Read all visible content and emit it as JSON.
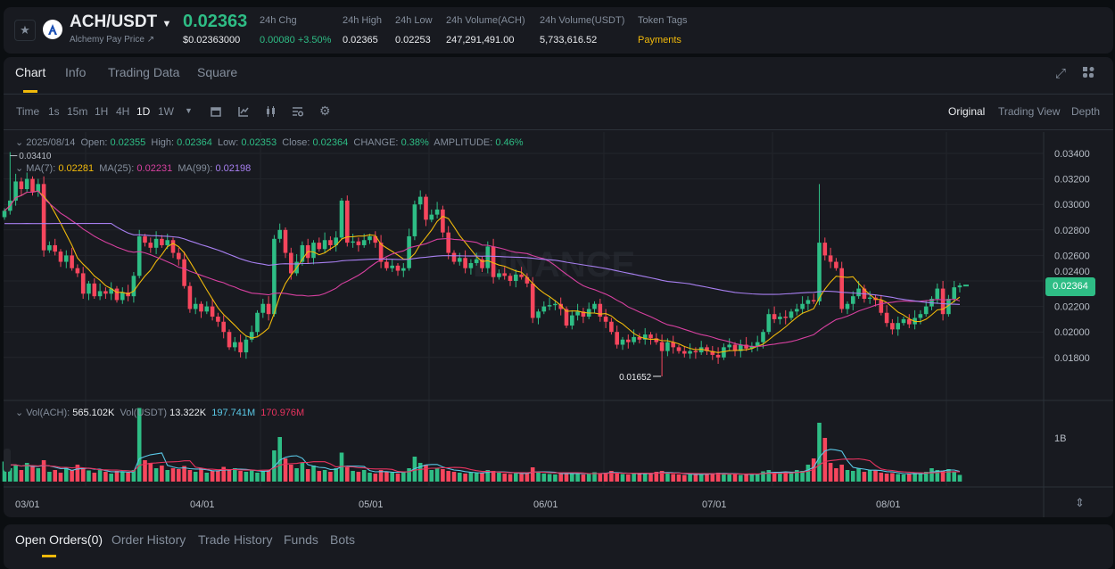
{
  "header": {
    "symbol": "ACH/USDT",
    "price": "0.02363",
    "name_link": "Alchemy Pay Price ↗",
    "usd_price": "$0.02363000",
    "stats": [
      {
        "label": "24h Chg",
        "value": "0.00080 +3.50%",
        "color": "#2ebd85"
      },
      {
        "label": "24h High",
        "value": "0.02365"
      },
      {
        "label": "24h Low",
        "value": "0.02253"
      },
      {
        "label": "24h Volume(ACH)",
        "value": "247,291,491.00"
      },
      {
        "label": "24h Volume(USDT)",
        "value": "5,733,616.52"
      },
      {
        "label": "Token Tags",
        "value": "Payments",
        "color": "#f0b90b"
      }
    ]
  },
  "tabs": [
    "Chart",
    "Info",
    "Trading Data",
    "Square"
  ],
  "toolbar": {
    "intervals": [
      "Time",
      "1s",
      "15m",
      "1H",
      "4H",
      "1D",
      "1W"
    ],
    "active_interval": "1D",
    "icons": [
      "calendar-icon",
      "indicator-icon",
      "candle-type-icon",
      "template-icon",
      "settings-icon"
    ],
    "views": [
      "Original",
      "Trading View",
      "Depth"
    ],
    "active_view": "Original"
  },
  "legend": {
    "date": "2025/08/14",
    "open_label": "Open:",
    "open": "0.02355",
    "high_label": "High:",
    "high": "0.02364",
    "low_label": "Low:",
    "low": "0.02353",
    "close_label": "Close:",
    "close": "0.02364",
    "change_label": "CHANGE:",
    "change": "0.38%",
    "amp_label": "AMPLITUDE:",
    "amp": "0.46%",
    "ma7_label": "MA(7):",
    "ma7": "0.02281",
    "ma25_label": "MA(25):",
    "ma25": "0.02231",
    "ma99_label": "MA(99):",
    "ma99": "0.02198",
    "vol_ach_label": "Vol(ACH):",
    "vol_ach": "565.102K",
    "vol_usdt_label": "Vol(USDT)",
    "vol_usdt": "13.322K",
    "vol_ma5": "197.741M",
    "vol_ma10": "170.976M"
  },
  "watermark": "BINANCE",
  "chart_data": {
    "type": "candlestick",
    "x_tick_labels": [
      "03/01",
      "04/01",
      "05/01",
      "06/01",
      "07/01",
      "08/01"
    ],
    "y_tick_labels": [
      "0.03400",
      "0.03200",
      "0.03000",
      "0.02800",
      "0.02600",
      "0.02400",
      "0.02200",
      "0.02000",
      "0.01800"
    ],
    "ylim": [
      0.016,
      0.035
    ],
    "current_price": "0.02364",
    "max_label": "0.03410",
    "min_label": "0.01652",
    "extremes": {
      "high": {
        "index": 1,
        "value": 0.0341
      },
      "low": {
        "index": 117,
        "value": 0.01652
      }
    },
    "first_open": 0.029,
    "closes": [
      0.0295,
      0.0303,
      0.0318,
      0.0312,
      0.032,
      0.031,
      0.0316,
      0.0264,
      0.0268,
      0.0263,
      0.0255,
      0.026,
      0.025,
      0.0246,
      0.023,
      0.0238,
      0.0228,
      0.0232,
      0.023,
      0.0234,
      0.0225,
      0.0231,
      0.0228,
      0.0244,
      0.0275,
      0.027,
      0.0266,
      0.0273,
      0.0268,
      0.0272,
      0.0262,
      0.0257,
      0.0236,
      0.0218,
      0.0222,
      0.0216,
      0.022,
      0.0212,
      0.0208,
      0.02,
      0.0188,
      0.0192,
      0.0184,
      0.0194,
      0.02,
      0.0215,
      0.0222,
      0.0214,
      0.0273,
      0.028,
      0.0262,
      0.0246,
      0.0255,
      0.0268,
      0.0258,
      0.027,
      0.0265,
      0.0272,
      0.0268,
      0.0274,
      0.0303,
      0.027,
      0.0271,
      0.0268,
      0.0272,
      0.0275,
      0.027,
      0.0255,
      0.025,
      0.0252,
      0.0248,
      0.025,
      0.0275,
      0.03,
      0.0306,
      0.0288,
      0.0292,
      0.0296,
      0.0278,
      0.0262,
      0.0255,
      0.0258,
      0.025,
      0.0254,
      0.0257,
      0.025,
      0.0267,
      0.0243,
      0.0246,
      0.0244,
      0.024,
      0.0245,
      0.0243,
      0.0238,
      0.0211,
      0.0216,
      0.022,
      0.0221,
      0.0222,
      0.0218,
      0.0205,
      0.0213,
      0.0216,
      0.0212,
      0.0218,
      0.0222,
      0.0212,
      0.0208,
      0.02,
      0.019,
      0.0194,
      0.0192,
      0.0196,
      0.0194,
      0.0198,
      0.0195,
      0.0192,
      0.0185,
      0.0192,
      0.0188,
      0.0185,
      0.0183,
      0.0185,
      0.0184,
      0.0188,
      0.0185,
      0.0182,
      0.018,
      0.0188,
      0.019,
      0.0185,
      0.019,
      0.0187,
      0.0189,
      0.0192,
      0.02,
      0.0214,
      0.021,
      0.0212,
      0.0211,
      0.0216,
      0.0218,
      0.0222,
      0.0225,
      0.0224,
      0.027,
      0.026,
      0.0255,
      0.025,
      0.0218,
      0.0222,
      0.0228,
      0.0234,
      0.0226,
      0.0227,
      0.0225,
      0.0215,
      0.0207,
      0.0202,
      0.0207,
      0.021,
      0.0206,
      0.0211,
      0.0214,
      0.022,
      0.0226,
      0.0234,
      0.0214,
      0.0226,
      0.0235,
      0.02364
    ],
    "volume_tick_label": "1B",
    "volumes_millions": [
      450,
      300,
      380,
      260,
      420,
      350,
      300,
      480,
      220,
      260,
      200,
      320,
      260,
      380,
      300,
      250,
      200,
      260,
      220,
      180,
      240,
      220,
      200,
      260,
      1650,
      480,
      420,
      300,
      360,
      260,
      300,
      280,
      350,
      260,
      220,
      300,
      200,
      240,
      250,
      330,
      280,
      300,
      240,
      220,
      260,
      200,
      240,
      260,
      700,
      1000,
      520,
      380,
      300,
      420,
      280,
      360,
      240,
      260,
      220,
      300,
      650,
      320,
      240,
      220,
      260,
      200,
      180,
      260,
      220,
      200,
      180,
      210,
      300,
      560,
      420,
      380,
      260,
      300,
      280,
      240,
      220,
      200,
      180,
      210,
      190,
      200,
      260,
      240,
      200,
      180,
      170,
      190,
      180,
      200,
      320,
      210,
      180,
      170,
      160,
      190,
      200,
      180,
      170,
      160,
      190,
      210,
      180,
      200,
      240,
      180,
      170,
      160,
      190,
      180,
      200,
      170,
      220,
      240,
      190,
      170,
      160,
      150,
      170,
      160,
      180,
      170,
      190,
      200,
      180,
      160,
      170,
      150,
      160,
      180,
      170,
      230,
      260,
      200,
      180,
      220,
      200,
      260,
      240,
      380,
      520,
      1320,
      980,
      420,
      300,
      380,
      260,
      240,
      300,
      220,
      260,
      260,
      200,
      180,
      190,
      170,
      160,
      180,
      200,
      170,
      220,
      300,
      260,
      240,
      280,
      220,
      150
    ],
    "colors": {
      "up": "#2ebd85",
      "down": "#f6465d",
      "ma7": "#f0b90b",
      "ma25": "#d6409f",
      "ma99": "#a77ff0",
      "vol_ma5": "#5ac8e6",
      "vol_ma10": "#e8335f"
    }
  },
  "bottom_tabs": [
    "Open Orders(0)",
    "Order History",
    "Trade History",
    "Funds",
    "Bots"
  ]
}
